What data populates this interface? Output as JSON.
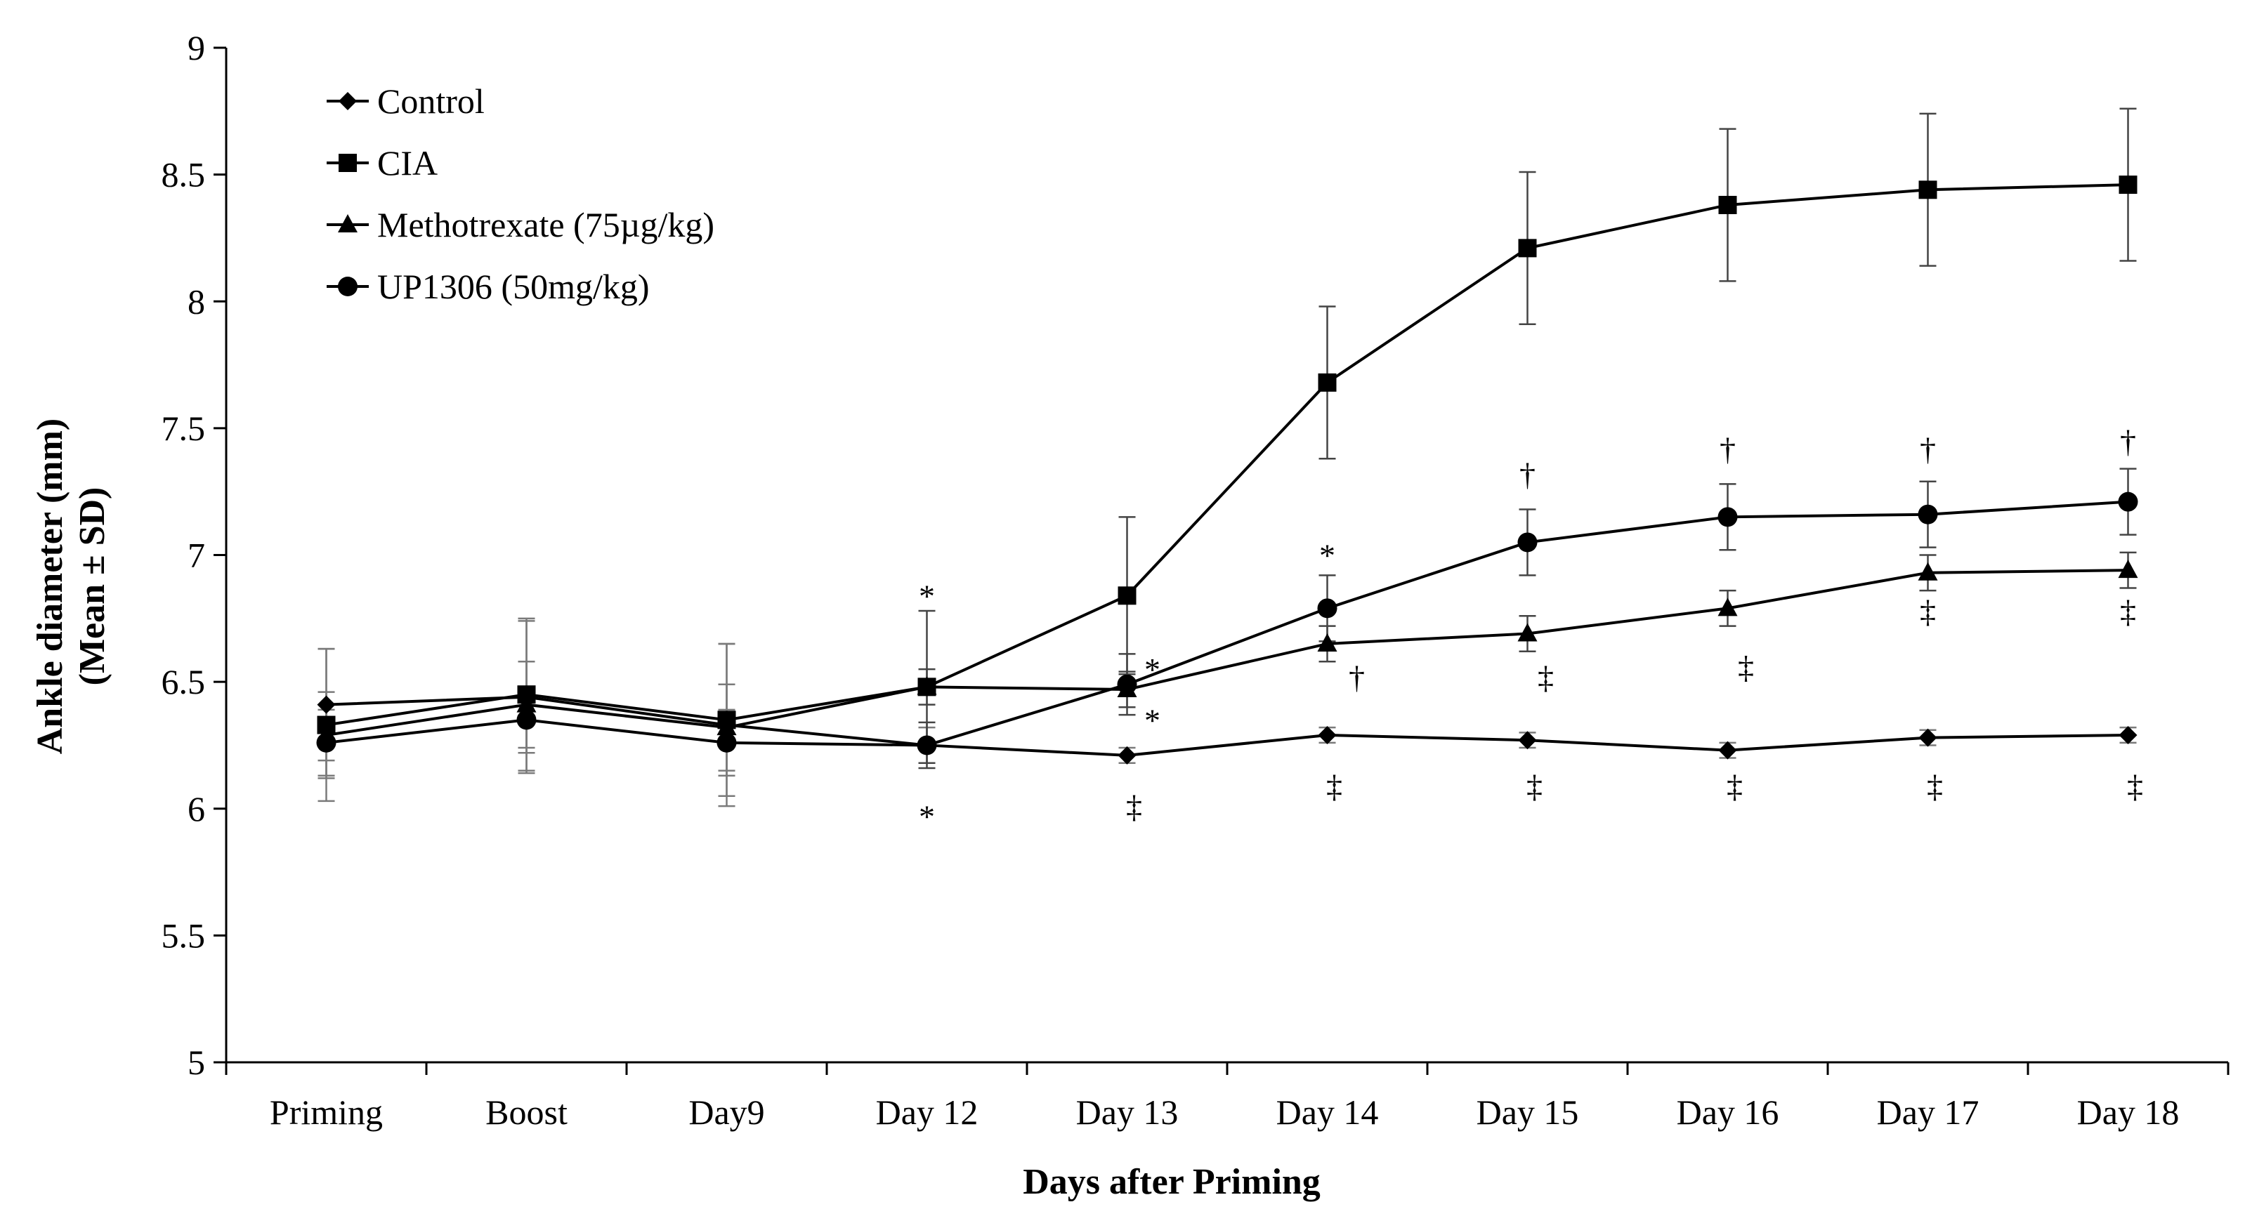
{
  "chart_data": {
    "type": "line",
    "title": "",
    "xlabel": "Days after Priming",
    "ylabel_line1": "Ankle diameter (mm)",
    "ylabel_line2": "(Mean ± SD)",
    "ylim": [
      5,
      9
    ],
    "yticks": [
      5,
      5.5,
      6,
      6.5,
      7,
      7.5,
      8,
      8.5,
      9
    ],
    "ytick_labels": [
      "5",
      "5.5",
      "6",
      "6.5",
      "7",
      "7.5",
      "8",
      "8.5",
      "9"
    ],
    "categories": [
      "Priming",
      "Boost",
      "Day9",
      "Day 12",
      "Day 13",
      "Day 14",
      "Day 15",
      "Day 16",
      "Day 17",
      "Day 18"
    ],
    "legend_position": "top-left",
    "series": [
      {
        "name": "Control",
        "marker": "diamond",
        "values": [
          6.41,
          6.44,
          6.33,
          6.25,
          6.21,
          6.29,
          6.27,
          6.23,
          6.28,
          6.29
        ],
        "errors": [
          0.22,
          0.3,
          0.32,
          0.07,
          0.03,
          0.03,
          0.03,
          0.03,
          0.03,
          0.03
        ]
      },
      {
        "name": "CIA",
        "marker": "square",
        "values": [
          6.33,
          6.45,
          6.35,
          6.48,
          6.84,
          7.68,
          8.21,
          8.38,
          8.44,
          8.46
        ],
        "errors": [
          0.3,
          0.3,
          0.3,
          0.3,
          0.31,
          0.3,
          0.3,
          0.3,
          0.3,
          0.3
        ]
      },
      {
        "name": "Methotrexate (75µg/kg)",
        "marker": "triangle",
        "values": [
          6.29,
          6.41,
          6.32,
          6.48,
          6.47,
          6.65,
          6.69,
          6.79,
          6.93,
          6.94
        ],
        "errors": [
          0.17,
          0.17,
          0.17,
          0.07,
          0.07,
          0.07,
          0.07,
          0.07,
          0.07,
          0.07
        ]
      },
      {
        "name": "UP1306 (50mg/kg)",
        "marker": "circle",
        "values": [
          6.26,
          6.35,
          6.26,
          6.25,
          6.49,
          6.79,
          7.05,
          7.15,
          7.16,
          7.21
        ],
        "errors": [
          0.13,
          0.13,
          0.13,
          0.09,
          0.12,
          0.13,
          0.13,
          0.13,
          0.13,
          0.13
        ]
      }
    ],
    "annotations": [
      {
        "text": "*",
        "x_index": 3,
        "y": 6.84
      },
      {
        "text": "*",
        "x_index": 3,
        "y": 5.97
      },
      {
        "text": "*",
        "x_index": 4,
        "y": 6.55
      },
      {
        "text": "*",
        "x_index": 4,
        "y": 6.35
      },
      {
        "text": "‡",
        "x_index": 4,
        "y": 6.01
      },
      {
        "text": "*",
        "x_index": 5,
        "y": 7.0
      },
      {
        "text": "†",
        "x_index": 5,
        "y": 6.52
      },
      {
        "text": "‡",
        "x_index": 5,
        "y": 6.09
      },
      {
        "text": "†",
        "x_index": 6,
        "y": 7.32
      },
      {
        "text": "‡",
        "x_index": 6,
        "y": 6.52
      },
      {
        "text": "‡",
        "x_index": 6,
        "y": 6.09
      },
      {
        "text": "†",
        "x_index": 7,
        "y": 7.42
      },
      {
        "text": "‡",
        "x_index": 7,
        "y": 6.56
      },
      {
        "text": "‡",
        "x_index": 7,
        "y": 6.09
      },
      {
        "text": "†",
        "x_index": 8,
        "y": 7.42
      },
      {
        "text": "‡",
        "x_index": 8,
        "y": 6.78
      },
      {
        "text": "‡",
        "x_index": 8,
        "y": 6.09
      },
      {
        "text": "†",
        "x_index": 9,
        "y": 7.45
      },
      {
        "text": "‡",
        "x_index": 9,
        "y": 6.78
      },
      {
        "text": "‡",
        "x_index": 9,
        "y": 6.09
      }
    ]
  }
}
